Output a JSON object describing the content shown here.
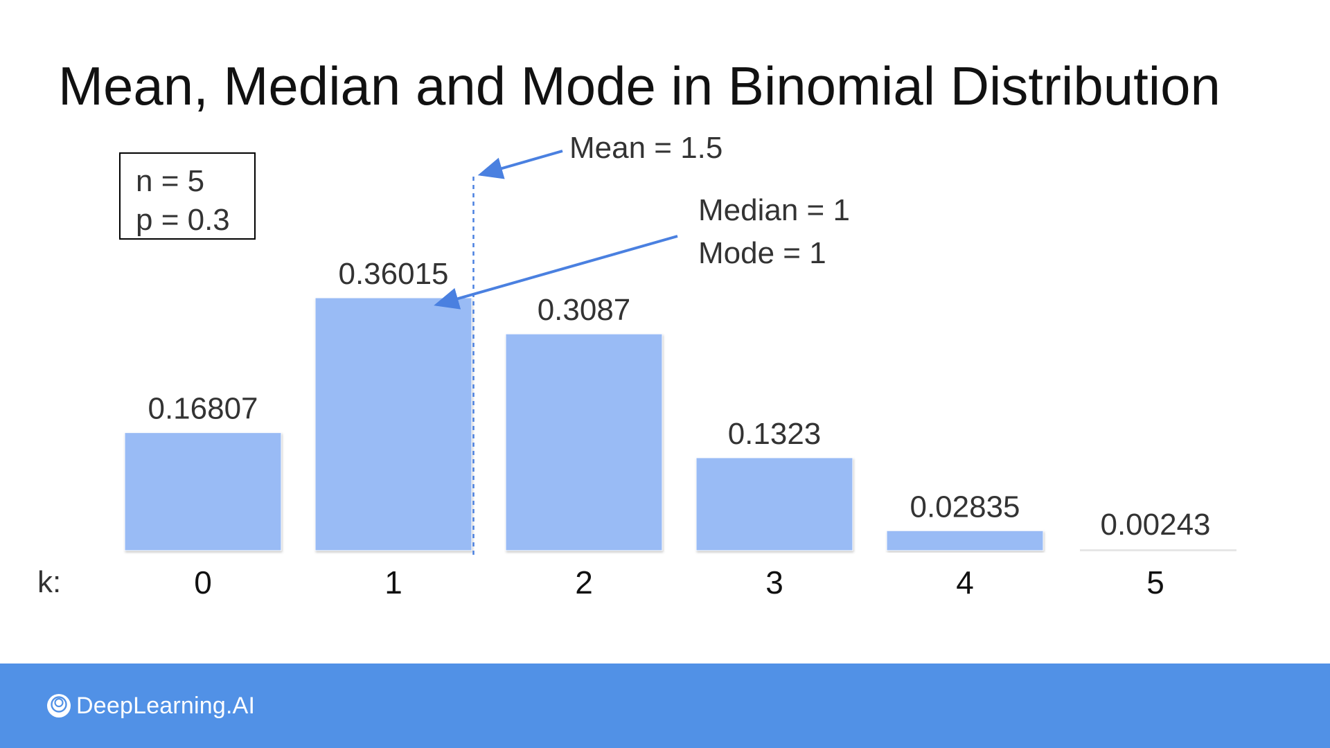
{
  "slide": {
    "title": "Mean, Median and Mode in Binomial Distribution",
    "params": [
      "n = 5",
      "p = 0.3"
    ],
    "brand": "DeepLearning.AI",
    "brand_icon": "deeplearning-ai-logo-icon"
  },
  "chart_data": {
    "type": "bar",
    "xlabel": "k:",
    "categories": [
      "0",
      "1",
      "2",
      "3",
      "4",
      "5"
    ],
    "values": [
      0.16807,
      0.36015,
      0.3087,
      0.1323,
      0.02835,
      0.00243
    ],
    "data_labels": [
      "0.16807",
      "0.36015",
      "0.3087",
      "0.1323",
      "0.02835",
      "0.00243"
    ],
    "bar_color": "#99bbf5",
    "arrow_color": "#4a80e0",
    "annotations": {
      "mean_label": "Mean = 1.5",
      "mean_value": 1.5,
      "median_label": "Median = 1",
      "mode_label": "Mode = 1",
      "median_value": 1,
      "mode_value": 1
    }
  }
}
